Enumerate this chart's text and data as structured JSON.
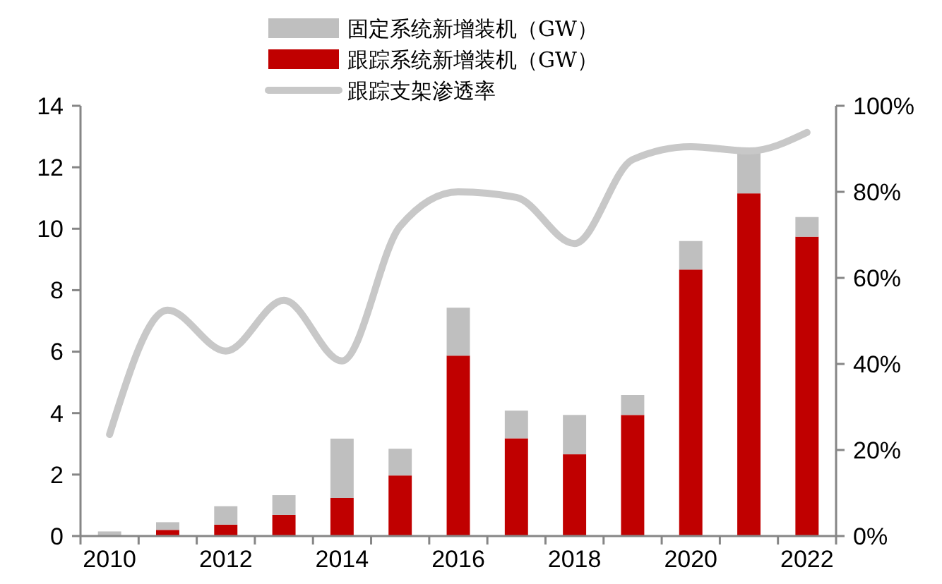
{
  "chart_data": {
    "type": "bar",
    "stacked": true,
    "categories": [
      "2010",
      null,
      "2012",
      null,
      "2014",
      null,
      "2016",
      null,
      "2018",
      null,
      "2020",
      null,
      "2022"
    ],
    "series": [
      {
        "name": "跟踪系统新增装机（GW）",
        "color": "#c00000",
        "values": [
          0,
          0.2,
          0.37,
          0.69,
          1.24,
          1.97,
          5.87,
          3.18,
          2.66,
          3.94,
          8.67,
          11.15,
          9.74
        ]
      },
      {
        "name": "固定系统新增装机（GW）",
        "color": "#bfbfbf",
        "values": [
          0.15,
          0.25,
          0.6,
          0.64,
          1.93,
          0.87,
          1.56,
          0.9,
          1.28,
          0.65,
          0.93,
          1.33,
          0.64
        ]
      },
      {
        "name": "跟踪支架渗透率",
        "type": "line",
        "axis": "y2",
        "color": "#c8c8c8",
        "values": [
          23.6,
          52.5,
          43,
          54.8,
          40.7,
          72,
          80,
          78.7,
          68,
          87.5,
          90.5,
          89.5,
          93.8
        ]
      }
    ],
    "ylim": [
      0,
      14
    ],
    "yticks": [
      0,
      2,
      4,
      6,
      8,
      10,
      12,
      14
    ],
    "y2lim": [
      0,
      100
    ],
    "y2ticks": [
      {
        "value": 0,
        "label": "0%"
      },
      {
        "value": 20,
        "label": "20%"
      },
      {
        "value": 40,
        "label": "40%"
      },
      {
        "value": 60,
        "label": "60%"
      },
      {
        "value": 80,
        "label": "80%"
      },
      {
        "value": 100,
        "label": "100%"
      }
    ],
    "legend": "top",
    "grid": false
  }
}
